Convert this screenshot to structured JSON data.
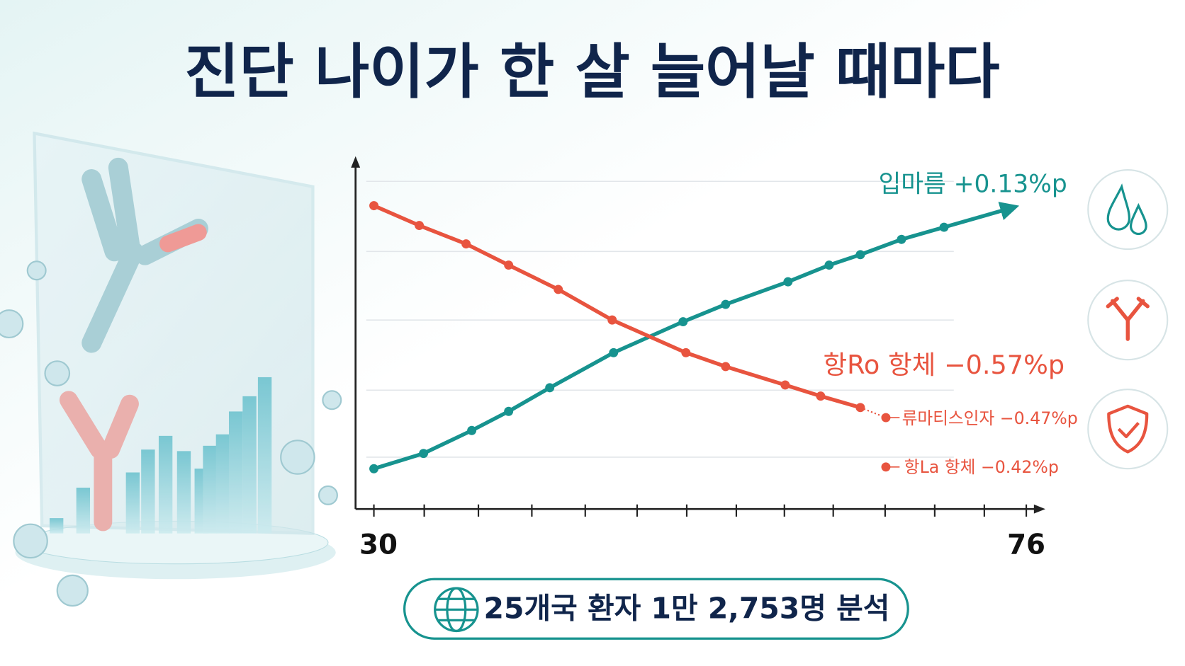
{
  "chart_data": {
    "type": "line",
    "title": "진단 나이가 한 살 늘어날 때마다",
    "xlim": [
      30,
      76
    ],
    "xticks": [
      30,
      76
    ],
    "ylim": [
      0,
      100
    ],
    "series": [
      {
        "name": "입마름",
        "label": "+0.13%p",
        "color": "#17938f",
        "x": [
          30,
          33.5,
          36.9,
          39.5,
          42.4,
          46.9,
          51.8,
          54.8,
          59.2,
          62.1,
          64.3,
          67.2,
          70.2
        ],
        "values": [
          11.6,
          16.0,
          22.6,
          28.1,
          34.9,
          45.0,
          53.9,
          58.9,
          65.4,
          70.2,
          73.2,
          77.6,
          81.1
        ]
      },
      {
        "name": "항Ro 항체",
        "label": "−0.57%p",
        "color": "#e8543f",
        "x": [
          30,
          33.2,
          36.5,
          39.5,
          43,
          46.8,
          52,
          54.8,
          59,
          61.5,
          64.3
        ],
        "values": [
          87.3,
          81.6,
          76.3,
          70.2,
          63.2,
          54.4,
          45.0,
          41.0,
          35.7,
          32.5,
          29.2
        ]
      },
      {
        "name": "류마티스인자",
        "label": "−0.47%p",
        "color": "#e8543f",
        "x": [
          66.1
        ],
        "values": [
          26.3
        ]
      },
      {
        "name": "항La 항체",
        "label": "−0.42%p",
        "color": "#e8543f",
        "x": [
          66.1
        ],
        "values": [
          12.1
        ]
      }
    ],
    "footer": "25개국 환자 1만 2,753명 분석"
  }
}
